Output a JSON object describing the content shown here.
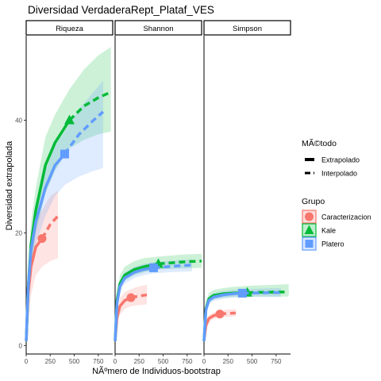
{
  "chart_data": {
    "type": "line",
    "title": "Diversidad VerdaderaRept_Plataf_VES",
    "xlabel": "NÃºmero de Individuos-bootstrap",
    "ylabel": "Diversidad extrapolada",
    "xlim": [
      0,
      900
    ],
    "ylim": [
      -1.5,
      55
    ],
    "xticks": [
      0,
      250,
      500,
      750
    ],
    "xtick_labels": [
      "0",
      "250",
      "500",
      "750"
    ],
    "yticks": [
      0,
      20,
      40
    ],
    "ytick_labels": [
      "0",
      "20",
      "40"
    ],
    "grid": false,
    "facets": [
      "Riqueza",
      "Shannon",
      "Simpson"
    ],
    "legend_placement": "right",
    "legend_method_title": "MÃ©todo",
    "legend_group_title": "Grupo",
    "methods": [
      {
        "key": "extrapolado",
        "label": "Extrapolado",
        "dash": "solid"
      },
      {
        "key": "interpolado",
        "label": "Interpolado",
        "dash": "dashed"
      }
    ],
    "groups": [
      {
        "key": "caracterizacion",
        "label": "Caracterizacion",
        "color": "#F8766D",
        "marker": "circle"
      },
      {
        "key": "kale",
        "label": "Kale",
        "color": "#00BA38",
        "marker": "triangle"
      },
      {
        "key": "platero",
        "label": "Platero",
        "color": "#619CFF",
        "marker": "square"
      }
    ],
    "panels": [
      {
        "facet": "Riqueza",
        "series": [
          {
            "group": "caracterizacion",
            "interp_x": [
              1,
              20,
              50,
              100,
              165
            ],
            "interp_y": [
              1,
              9,
              14,
              17.5,
              19
            ],
            "extrap_x": [
              165,
              250,
              330
            ],
            "extrap_y": [
              19,
              21.5,
              23
            ],
            "ci_lo": [
              1,
              4,
              9,
              12.5,
              14,
              15,
              15.5
            ],
            "ci_hi": [
              1,
              12,
              18,
              22,
              24,
              26.5,
              27.5
            ],
            "observed": {
              "x": 165,
              "y": 19
            }
          },
          {
            "group": "kale",
            "interp_x": [
              1,
              20,
              50,
              100,
              200,
              300,
              450
            ],
            "interp_y": [
              1,
              10,
              18,
              24,
              32,
              36,
              40
            ],
            "extrap_x": [
              450,
              600,
              750,
              880
            ],
            "extrap_y": [
              40,
              42.5,
              44,
              45
            ],
            "ci_lo": [
              1,
              7,
              14,
              20,
              27,
              31,
              35,
              36.5,
              37.5,
              38
            ],
            "ci_hi": [
              1,
              13,
              22,
              28,
              37,
              41,
              45.5,
              49,
              51.5,
              53
            ],
            "observed": {
              "x": 450,
              "y": 40
            }
          },
          {
            "group": "platero",
            "interp_x": [
              1,
              20,
              50,
              100,
              200,
              300,
              400
            ],
            "interp_y": [
              1,
              10,
              17,
              22,
              28,
              32,
              34
            ],
            "extrap_x": [
              400,
              550,
              700,
              800
            ],
            "extrap_y": [
              34,
              37.5,
              40,
              41.5
            ],
            "ci_lo": [
              1,
              7,
              13,
              18,
              23,
              26.5,
              28.5,
              30,
              31,
              31.5
            ],
            "ci_hi": [
              1,
              12.5,
              20,
              25,
              31,
              35.5,
              38,
              42,
              45,
              47
            ],
            "observed": {
              "x": 400,
              "y": 34
            }
          }
        ]
      },
      {
        "facet": "Shannon",
        "series": [
          {
            "group": "caracterizacion",
            "interp_x": [
              1,
              20,
              50,
              100,
              165
            ],
            "interp_y": [
              1,
              5,
              7,
              8,
              8.5
            ],
            "extrap_x": [
              165,
              250,
              330
            ],
            "extrap_y": [
              8.5,
              8.8,
              9
            ],
            "ci_lo": [
              1,
              4,
              5.5,
              6.5,
              7,
              7.2,
              7.3
            ],
            "ci_hi": [
              1,
              6,
              8.5,
              9.5,
              10,
              10.5,
              10.8
            ],
            "observed": {
              "x": 165,
              "y": 8.5
            }
          },
          {
            "group": "kale",
            "interp_x": [
              1,
              20,
              50,
              100,
              200,
              300,
              450
            ],
            "interp_y": [
              1,
              8,
              11,
              12.5,
              13.5,
              14,
              14.5
            ],
            "extrap_x": [
              450,
              600,
              750,
              900
            ],
            "extrap_y": [
              14.5,
              14.7,
              14.9,
              15
            ],
            "ci_lo": [
              1,
              7,
              10,
              11.5,
              12.5,
              13,
              13.5,
              13.6,
              13.7,
              13.8
            ],
            "ci_hi": [
              1,
              9,
              12.5,
              14,
              15,
              15.5,
              15.8,
              16,
              16.2,
              16.3
            ],
            "observed": {
              "x": 450,
              "y": 14.5
            }
          },
          {
            "group": "platero",
            "interp_x": [
              1,
              20,
              50,
              100,
              200,
              300,
              400
            ],
            "interp_y": [
              1,
              7.5,
              10.5,
              12,
              13,
              13.5,
              13.8
            ],
            "extrap_x": [
              400,
              550,
              700,
              800
            ],
            "extrap_y": [
              13.8,
              14,
              14.2,
              14.3
            ],
            "ci_lo": [
              1,
              6.5,
              9.5,
              11,
              12,
              12.5,
              12.8,
              13,
              13.1,
              13.2
            ],
            "ci_hi": [
              1,
              8.5,
              11.5,
              13,
              14,
              14.5,
              14.8,
              15,
              15.2,
              15.3
            ],
            "observed": {
              "x": 400,
              "y": 13.8
            }
          }
        ]
      },
      {
        "facet": "Simpson",
        "series": [
          {
            "group": "caracterizacion",
            "interp_x": [
              1,
              20,
              50,
              100,
              165
            ],
            "interp_y": [
              1,
              3.5,
              4.8,
              5.3,
              5.6
            ],
            "extrap_x": [
              165,
              250,
              330
            ],
            "extrap_y": [
              5.6,
              5.7,
              5.8
            ],
            "ci_lo": [
              1,
              3,
              4.2,
              4.7,
              5,
              5.1,
              5.2
            ],
            "ci_hi": [
              1,
              4,
              5.4,
              5.9,
              6.2,
              6.4,
              6.5
            ],
            "observed": {
              "x": 165,
              "y": 5.6
            }
          },
          {
            "group": "kale",
            "interp_x": [
              1,
              20,
              50,
              100,
              200,
              300,
              450
            ],
            "interp_y": [
              1,
              6.5,
              8.3,
              8.9,
              9.2,
              9.3,
              9.4
            ],
            "extrap_x": [
              450,
              600,
              750,
              880
            ],
            "extrap_y": [
              9.4,
              9.45,
              9.5,
              9.5
            ],
            "ci_lo": [
              1,
              5.8,
              7.6,
              8.2,
              8.5,
              8.6,
              8.7,
              8.7,
              8.7,
              8.7
            ],
            "ci_hi": [
              1,
              7.5,
              9.3,
              9.9,
              10.2,
              10.4,
              10.6,
              10.7,
              10.8,
              10.9
            ],
            "observed": {
              "x": 450,
              "y": 9.4
            }
          },
          {
            "group": "platero",
            "interp_x": [
              1,
              20,
              50,
              100,
              200,
              300,
              400
            ],
            "interp_y": [
              1,
              6.3,
              8,
              8.6,
              9,
              9.2,
              9.3
            ],
            "extrap_x": [
              400,
              550,
              700,
              800
            ],
            "extrap_y": [
              9.3,
              9.35,
              9.4,
              9.4
            ],
            "ci_lo": [
              1,
              5.6,
              7.3,
              7.9,
              8.3,
              8.5,
              8.6,
              8.6,
              8.6,
              8.6
            ],
            "ci_hi": [
              1,
              7,
              8.7,
              9.3,
              9.7,
              9.9,
              10,
              10.1,
              10.2,
              10.2
            ],
            "observed": {
              "x": 400,
              "y": 9.3
            }
          }
        ]
      }
    ]
  }
}
